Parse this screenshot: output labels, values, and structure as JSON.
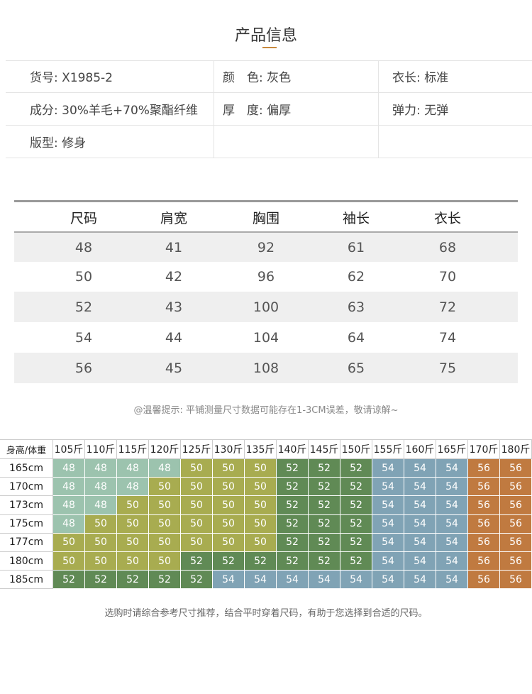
{
  "title": "产品信息",
  "info": {
    "rows": [
      [
        "货号: X1985-2",
        "颜　色: 灰色",
        "衣长: 标准"
      ],
      [
        "成分: 30%羊毛+70%聚酯纤维",
        "厚　度: 偏厚",
        "弹力: 无弹"
      ],
      [
        "版型: 修身"
      ]
    ]
  },
  "size_table": {
    "header": [
      "尺码",
      "肩宽",
      "胸围",
      "袖长",
      "衣长"
    ],
    "rows": [
      [
        48,
        41,
        92,
        61,
        68
      ],
      [
        50,
        42,
        96,
        62,
        70
      ],
      [
        52,
        43,
        100,
        63,
        72
      ],
      [
        54,
        44,
        104,
        64,
        74
      ],
      [
        56,
        45,
        108,
        65,
        75
      ]
    ]
  },
  "note": "@温馨提示: 平铺测量尺寸数据可能存在1-3CM误差，敬请谅解~",
  "recommend": {
    "corner": "身高/体重",
    "columns": [
      "105斤",
      "110斤",
      "115斤",
      "120斤",
      "125斤",
      "130斤",
      "135斤",
      "140斤",
      "145斤",
      "150斤",
      "155斤",
      "160斤",
      "165斤",
      "170斤",
      "180斤"
    ],
    "row_labels": [
      "165cm",
      "170cm",
      "173cm",
      "175cm",
      "177cm",
      "180cm",
      "185cm"
    ],
    "rows": [
      [
        48,
        48,
        48,
        48,
        50,
        50,
        50,
        52,
        52,
        52,
        54,
        54,
        54,
        56,
        56
      ],
      [
        48,
        48,
        48,
        50,
        50,
        50,
        50,
        52,
        52,
        52,
        54,
        54,
        54,
        56,
        56
      ],
      [
        48,
        48,
        50,
        50,
        50,
        50,
        50,
        52,
        52,
        52,
        54,
        54,
        54,
        56,
        56
      ],
      [
        48,
        50,
        50,
        50,
        50,
        50,
        50,
        52,
        52,
        52,
        54,
        54,
        54,
        56,
        56
      ],
      [
        50,
        50,
        50,
        50,
        50,
        50,
        50,
        52,
        52,
        52,
        54,
        54,
        54,
        56,
        56
      ],
      [
        50,
        50,
        50,
        50,
        52,
        52,
        52,
        52,
        52,
        52,
        54,
        54,
        54,
        56,
        56
      ],
      [
        52,
        52,
        52,
        52,
        52,
        54,
        54,
        54,
        54,
        54,
        54,
        54,
        54,
        56,
        56
      ]
    ],
    "size_colors": {
      "48": "#9cc3ae",
      "50": "#a8ac50",
      "52": "#608a55",
      "54": "#80a3b5",
      "56": "#c07a40"
    }
  },
  "footer": "选购时请综合参考尺寸推荐，结合平时穿着尺码，有助于您选择到合适的尺码。"
}
